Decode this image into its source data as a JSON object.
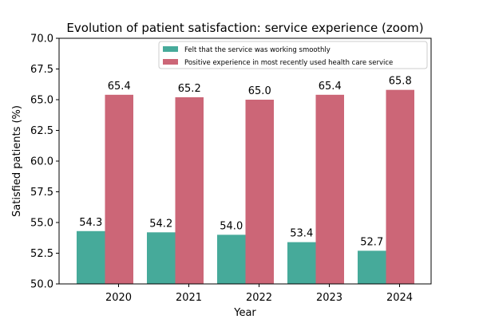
{
  "chart_data": {
    "type": "bar",
    "title": "Evolution of patient satisfaction: service experience (zoom)",
    "xlabel": "Year",
    "ylabel": "Satisfied patients (%)",
    "categories": [
      "2020",
      "2021",
      "2022",
      "2023",
      "2024"
    ],
    "ylim": [
      50.0,
      70.0
    ],
    "yticks": [
      "50.0",
      "52.5",
      "55.0",
      "57.5",
      "60.0",
      "62.5",
      "65.0",
      "67.5",
      "70.0"
    ],
    "grid": false,
    "legend_position": "top-right",
    "series": [
      {
        "name": "Felt that the service was working smoothly",
        "color": "#46aa9a",
        "values": [
          54.3,
          54.2,
          54.0,
          53.4,
          52.7
        ],
        "labels": [
          "54.3",
          "54.2",
          "54.0",
          "53.4",
          "52.7"
        ]
      },
      {
        "name": "Positive experience in most recently used health care service",
        "color": "#cc6677",
        "values": [
          65.4,
          65.2,
          65.0,
          65.4,
          65.8
        ],
        "labels": [
          "65.4",
          "65.2",
          "65.0",
          "65.4",
          "65.8"
        ]
      }
    ]
  }
}
